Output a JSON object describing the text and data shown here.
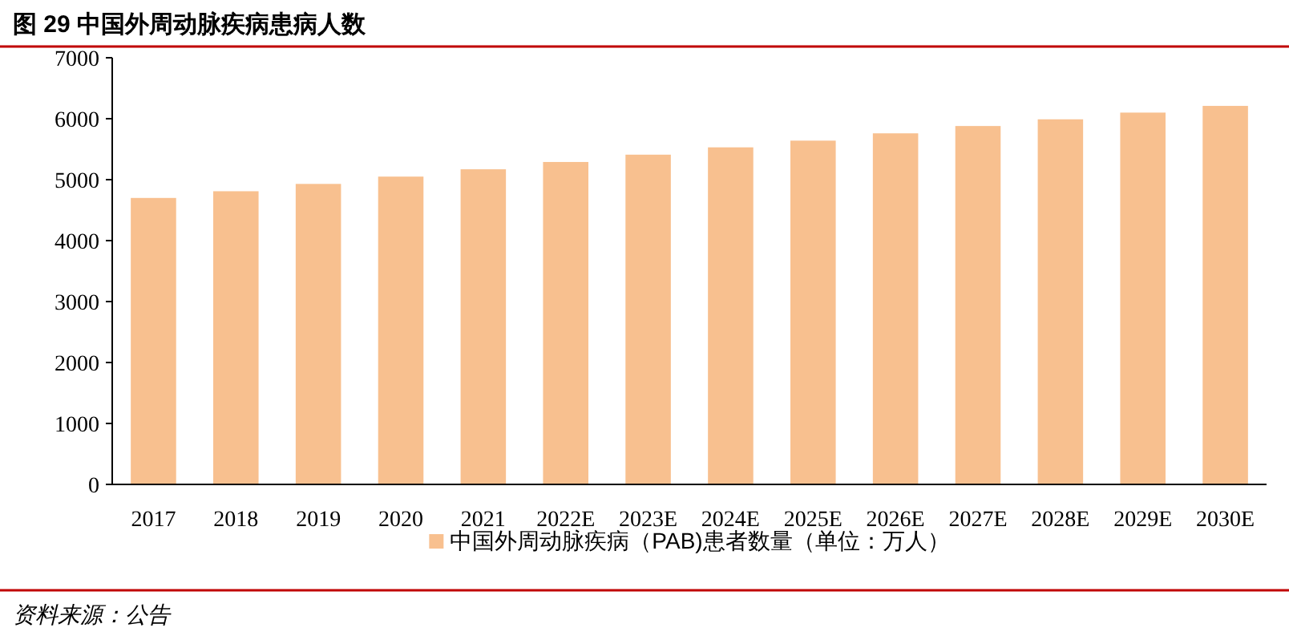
{
  "chart_data": {
    "type": "bar",
    "title": "图 29  中国外周动脉疾病患病人数",
    "categories": [
      "2017",
      "2018",
      "2019",
      "2020",
      "2021",
      "2022E",
      "2023E",
      "2024E",
      "2025E",
      "2026E",
      "2027E",
      "2028E",
      "2029E",
      "2030E"
    ],
    "series": [
      {
        "name": "中国外周动脉疾病（PAB)患者数量（单位：万人）",
        "color": "#f8c08f",
        "values": [
          4700,
          4810,
          4930,
          5050,
          5170,
          5290,
          5410,
          5530,
          5640,
          5760,
          5880,
          5990,
          6100,
          6210
        ]
      }
    ],
    "ylim": [
      0,
      7000
    ],
    "yticks": [
      0,
      1000,
      2000,
      3000,
      4000,
      5000,
      6000,
      7000
    ],
    "grid": false,
    "legend": "bottom",
    "annotations": [
      "资料来源：公告"
    ]
  }
}
